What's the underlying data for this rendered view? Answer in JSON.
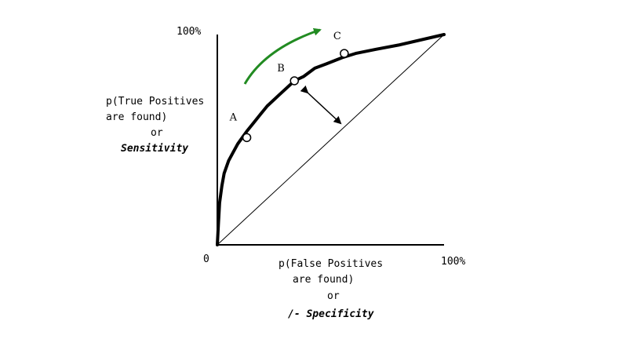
{
  "chart_data": {
    "type": "line",
    "y_top_label": "100%",
    "x_right_label": "100%",
    "origin_label": "0",
    "ylabel": [
      "p(True Positives",
      "are found)",
      "or",
      "Sensitivity"
    ],
    "xlabel": [
      "p(False Positives",
      "are found)",
      "or",
      "/- Specificity"
    ],
    "xlim": [
      0,
      100
    ],
    "ylim": [
      0,
      100
    ],
    "series": [
      {
        "x": [
          0,
          0.5,
          1,
          2,
          3,
          5,
          7,
          9,
          11,
          13,
          16,
          19,
          22,
          27,
          30,
          34,
          38,
          43,
          48,
          55,
          61,
          70,
          80,
          100
        ],
        "y": [
          0,
          10,
          20,
          28,
          34,
          40,
          44,
          48,
          51,
          54,
          58,
          62,
          66,
          71,
          74,
          78,
          80,
          84,
          86,
          89,
          91,
          93,
          95,
          100
        ]
      },
      {
        "x": [
          0,
          100
        ],
        "y": [
          0,
          100
        ]
      }
    ],
    "points": [
      {
        "label": "A",
        "x": 13,
        "y": 51
      },
      {
        "label": "B",
        "x": 34,
        "y": 78
      },
      {
        "label": "C",
        "x": 56,
        "y": 91
      }
    ]
  },
  "colors": {
    "curve": "#000000",
    "arrow": "#228b22"
  }
}
